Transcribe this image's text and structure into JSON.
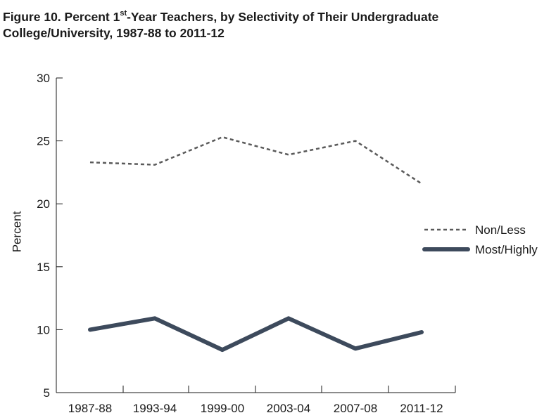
{
  "chart_data": {
    "type": "line",
    "title_main": "Figure 10. Percent 1",
    "title_sup": "st",
    "title_rest": "-Year Teachers, by Selectivity of Their Undergraduate",
    "title_line2": "College/University, 1987-88 to 2011-12",
    "ylabel": "Percent",
    "xlabel": "",
    "categories": [
      "1987-88",
      "1993-94",
      "1999-00",
      "2003-04",
      "2007-08",
      "2011-12"
    ],
    "ylim": [
      5,
      30
    ],
    "yticks": [
      5,
      10,
      15,
      20,
      25,
      30
    ],
    "grid": false,
    "legend_position": "right",
    "series": [
      {
        "name": "Non/Less",
        "values": [
          23.3,
          23.1,
          25.3,
          23.9,
          25.0,
          21.6
        ],
        "color": "#5a5a5a",
        "style": "dashed"
      },
      {
        "name": "Most/Highly",
        "values": [
          10.0,
          10.9,
          8.4,
          10.9,
          8.5,
          9.8
        ],
        "color": "#3d4a5c",
        "style": "solid"
      }
    ]
  }
}
